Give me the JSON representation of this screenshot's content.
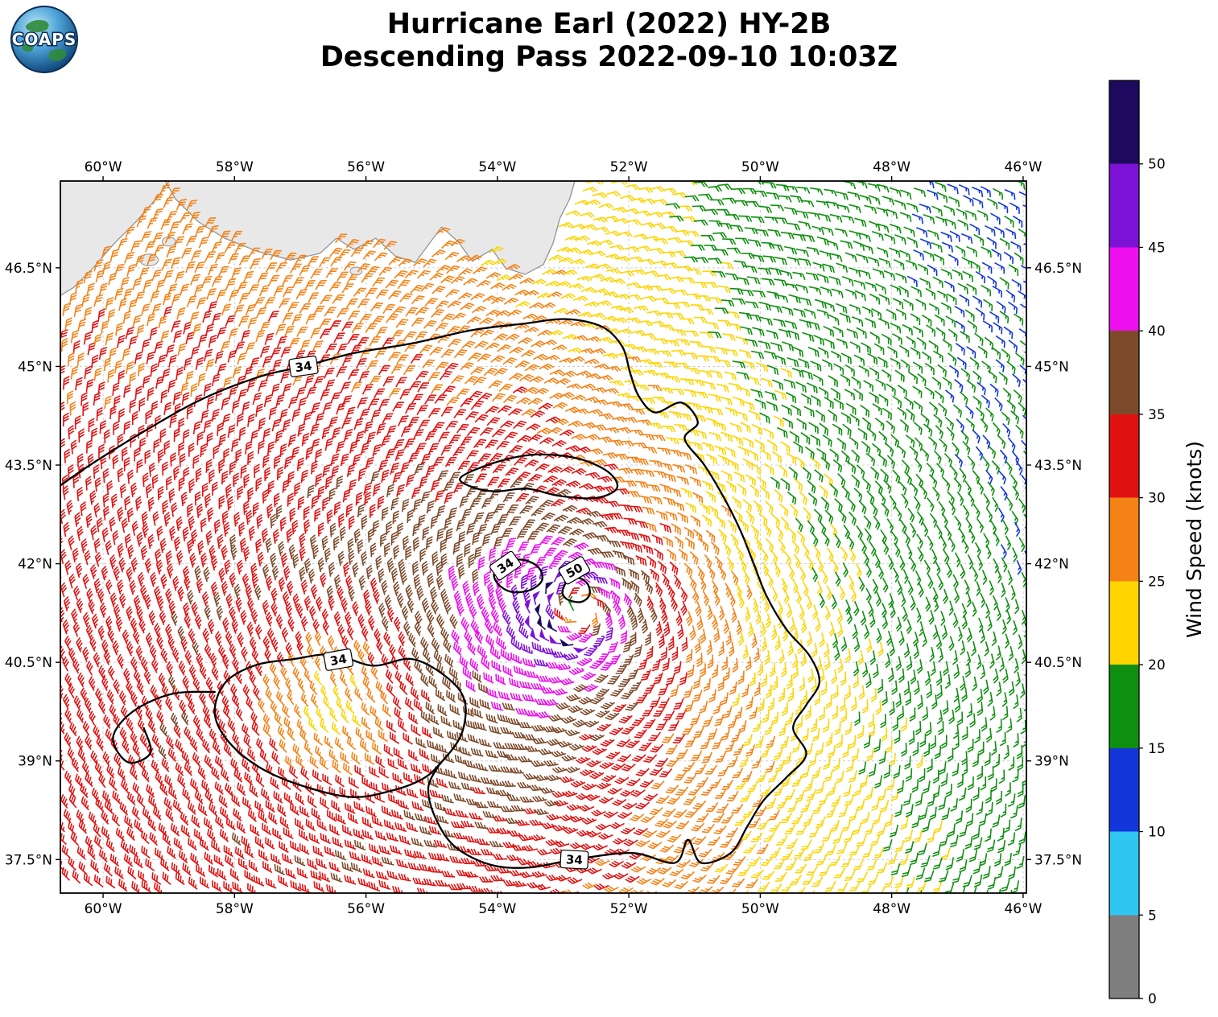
{
  "title": {
    "line1": "Hurricane Earl (2022) HY-2B",
    "line2": "Descending Pass 2022-09-10 10:03Z"
  },
  "logo": {
    "text": "COAPS"
  },
  "chart_data": {
    "type": "wind_barb_map",
    "storm": "Hurricane Earl (2022)",
    "satellite": "HY-2B",
    "pass": "Descending Pass 2022-09-10 10:03Z",
    "axes": {
      "lon_range_deg_w": [
        60.65,
        45.95
      ],
      "lat_range_deg_n": [
        36.99,
        47.82
      ],
      "grid_style": "dashed",
      "lon_ticks": [
        {
          "deg_w": 60,
          "label": "60°W"
        },
        {
          "deg_w": 58,
          "label": "58°W"
        },
        {
          "deg_w": 56,
          "label": "56°W"
        },
        {
          "deg_w": 54,
          "label": "54°W"
        },
        {
          "deg_w": 52,
          "label": "52°W"
        },
        {
          "deg_w": 50,
          "label": "50°W"
        },
        {
          "deg_w": 48,
          "label": "48°W"
        },
        {
          "deg_w": 46,
          "label": "46°W"
        }
      ],
      "lat_ticks": [
        {
          "deg_n": 46.5,
          "label": "46.5°N"
        },
        {
          "deg_n": 45,
          "label": "45°N"
        },
        {
          "deg_n": 43.5,
          "label": "43.5°N"
        },
        {
          "deg_n": 42,
          "label": "42°N"
        },
        {
          "deg_n": 40.5,
          "label": "40.5°N"
        },
        {
          "deg_n": 39,
          "label": "39°N"
        },
        {
          "deg_n": 37.5,
          "label": "37.5°N"
        }
      ]
    },
    "colorbar": {
      "title": "Wind Speed (knots)",
      "tick_values": [
        0,
        5,
        10,
        15,
        20,
        25,
        30,
        35,
        40,
        45,
        50
      ],
      "tick_labels": [
        "0",
        "5",
        "10",
        "15",
        "20",
        "25",
        "30",
        "35",
        "40",
        "45",
        "50"
      ],
      "value_max": 55,
      "segments": [
        {
          "from": 0,
          "to": 5,
          "color": "#7f7f7f"
        },
        {
          "from": 5,
          "to": 10,
          "color": "#2fc6f2"
        },
        {
          "from": 10,
          "to": 15,
          "color": "#1236d9"
        },
        {
          "from": 15,
          "to": 20,
          "color": "#0f8f0f"
        },
        {
          "from": 20,
          "to": 25,
          "color": "#ffd400"
        },
        {
          "from": 25,
          "to": 30,
          "color": "#f58216"
        },
        {
          "from": 30,
          "to": 35,
          "color": "#e11212"
        },
        {
          "from": 35,
          "to": 40,
          "color": "#7d4a2b"
        },
        {
          "from": 40,
          "to": 45,
          "color": "#ed0fed"
        },
        {
          "from": 45,
          "to": 50,
          "color": "#7c12d6"
        },
        {
          "from": 50,
          "to": 55,
          "color": "#1d0a5f"
        }
      ]
    },
    "wind_field": {
      "units": "knots",
      "center": {
        "lon_w": 52.75,
        "lat_n": 41.3
      },
      "rotation": "counterclockwise",
      "inflow_deg": 20,
      "max_wind_kt": 49,
      "radius_max_wind_deg": 0.5,
      "decay_exponent": 0.28,
      "asymmetry": {
        "bias": 0.05,
        "amplitude": 0.45,
        "max_toward_deg_math": 200,
        "growth_scale_deg": 3.2
      },
      "weak_patch": {
        "lon_w": 56.4,
        "lat_n": 39.8,
        "depth": 0.35,
        "sigma_deg": 0.9
      },
      "barb_spacing_deg": 0.185,
      "swath_tilt_deg": -8
    },
    "contours": {
      "levels_kt": [
        34,
        50
      ],
      "line_color": "#000000",
      "labels": [
        {
          "text": "34",
          "lon_w": 56.95,
          "lat_n": 45.0,
          "rot": -8
        },
        {
          "text": "34",
          "lon_w": 53.88,
          "lat_n": 41.97,
          "rot": -35
        },
        {
          "text": "50",
          "lon_w": 52.83,
          "lat_n": 41.9,
          "rot": -30
        },
        {
          "text": "34",
          "lon_w": 56.42,
          "lat_n": 40.54,
          "rot": -10
        },
        {
          "text": "34",
          "lon_w": 52.83,
          "lat_n": 37.5,
          "rot": 3
        }
      ],
      "paths": [
        {
          "level": 34,
          "closed": false,
          "points": [
            [
              60.78,
              43.1
            ],
            [
              60.2,
              43.5
            ],
            [
              59.4,
              44.0
            ],
            [
              58.5,
              44.5
            ],
            [
              57.6,
              44.85
            ],
            [
              56.95,
              45.0
            ],
            [
              56.2,
              45.2
            ],
            [
              55.3,
              45.35
            ],
            [
              54.4,
              45.55
            ],
            [
              53.6,
              45.65
            ],
            [
              52.95,
              45.72
            ],
            [
              52.4,
              45.6
            ],
            [
              52.1,
              45.3
            ],
            [
              51.98,
              44.9
            ],
            [
              51.85,
              44.55
            ],
            [
              51.6,
              44.3
            ],
            [
              51.2,
              44.45
            ],
            [
              50.95,
              44.15
            ],
            [
              51.15,
              43.9
            ],
            [
              50.85,
              43.5
            ],
            [
              50.55,
              43.0
            ],
            [
              50.3,
              42.5
            ],
            [
              50.1,
              42.0
            ],
            [
              49.9,
              41.5
            ],
            [
              49.6,
              41.0
            ],
            [
              49.25,
              40.6
            ],
            [
              49.1,
              40.2
            ],
            [
              49.3,
              39.85
            ],
            [
              49.5,
              39.5
            ],
            [
              49.3,
              39.1
            ],
            [
              49.6,
              38.75
            ],
            [
              49.95,
              38.4
            ],
            [
              50.2,
              38.0
            ],
            [
              50.45,
              37.6
            ],
            [
              50.9,
              37.45
            ],
            [
              51.1,
              37.8
            ],
            [
              51.3,
              37.45
            ],
            [
              51.95,
              37.6
            ],
            [
              52.83,
              37.5
            ],
            [
              53.5,
              37.38
            ],
            [
              54.1,
              37.42
            ],
            [
              54.65,
              37.7
            ],
            [
              54.95,
              38.15
            ],
            [
              55.05,
              38.6
            ],
            [
              54.88,
              38.95
            ]
          ]
        },
        {
          "level": 34,
          "closed": true,
          "points": [
            [
              54.88,
              38.95
            ],
            [
              54.55,
              39.4
            ],
            [
              54.5,
              39.92
            ],
            [
              54.78,
              40.28
            ],
            [
              55.3,
              40.55
            ],
            [
              55.9,
              40.45
            ],
            [
              56.5,
              40.62
            ],
            [
              57.1,
              40.55
            ],
            [
              57.7,
              40.45
            ],
            [
              58.15,
              40.18
            ],
            [
              58.3,
              39.72
            ],
            [
              58.08,
              39.28
            ],
            [
              57.58,
              38.88
            ],
            [
              56.9,
              38.6
            ],
            [
              56.2,
              38.45
            ],
            [
              55.6,
              38.55
            ],
            [
              55.15,
              38.72
            ]
          ]
        },
        {
          "level": 34,
          "closed": false,
          "points": [
            [
              58.3,
              40.05
            ],
            [
              58.95,
              40.02
            ],
            [
              59.55,
              39.75
            ],
            [
              59.85,
              39.35
            ],
            [
              59.62,
              38.98
            ],
            [
              59.28,
              39.12
            ],
            [
              59.38,
              39.5
            ]
          ]
        },
        {
          "level": 34,
          "closed": true,
          "points": [
            [
              54.05,
              41.85
            ],
            [
              53.9,
              42.02
            ],
            [
              53.62,
              42.06
            ],
            [
              53.38,
              41.95
            ],
            [
              53.32,
              41.75
            ],
            [
              53.5,
              41.6
            ],
            [
              53.78,
              41.57
            ],
            [
              53.98,
              41.68
            ]
          ]
        },
        {
          "level": 50,
          "closed": true,
          "points": [
            [
              53.0,
              41.62
            ],
            [
              52.92,
              41.75
            ],
            [
              52.75,
              41.78
            ],
            [
              52.62,
              41.68
            ],
            [
              52.6,
              41.52
            ],
            [
              52.72,
              41.42
            ],
            [
              52.9,
              41.44
            ],
            [
              53.0,
              41.52
            ]
          ]
        },
        {
          "level": 34,
          "closed": true,
          "points": [
            [
              54.55,
              43.32
            ],
            [
              54.0,
              43.55
            ],
            [
              53.4,
              43.66
            ],
            [
              52.78,
              43.6
            ],
            [
              52.32,
              43.4
            ],
            [
              52.18,
              43.15
            ],
            [
              52.5,
              43.0
            ],
            [
              53.05,
              43.03
            ],
            [
              53.55,
              43.14
            ],
            [
              54.05,
              43.1
            ],
            [
              54.42,
              43.18
            ]
          ]
        }
      ]
    },
    "land": {
      "fill": "#e8e8e8",
      "coast": "#8c8c8c",
      "polygons": [
        [
          [
            60.78,
            46.0
          ],
          [
            60.45,
            46.2
          ],
          [
            60.15,
            46.5
          ],
          [
            59.85,
            46.85
          ],
          [
            59.5,
            47.2
          ],
          [
            59.15,
            47.6
          ],
          [
            58.95,
            47.9
          ],
          [
            60.78,
            47.9
          ]
        ],
        [
          [
            59.1,
            47.9
          ],
          [
            58.9,
            47.55
          ],
          [
            58.55,
            47.2
          ],
          [
            58.15,
            46.95
          ],
          [
            57.65,
            46.75
          ],
          [
            57.15,
            46.62
          ],
          [
            56.7,
            46.72
          ],
          [
            56.45,
            46.95
          ],
          [
            56.18,
            46.78
          ],
          [
            55.85,
            46.95
          ],
          [
            55.55,
            46.68
          ],
          [
            55.25,
            46.58
          ],
          [
            55.05,
            46.85
          ],
          [
            54.85,
            47.12
          ],
          [
            54.6,
            46.9
          ],
          [
            54.38,
            46.6
          ],
          [
            54.08,
            46.78
          ],
          [
            53.88,
            46.5
          ],
          [
            53.58,
            46.4
          ],
          [
            53.3,
            46.55
          ],
          [
            53.15,
            46.88
          ],
          [
            53.05,
            47.25
          ],
          [
            52.9,
            47.55
          ],
          [
            52.8,
            47.9
          ]
        ]
      ],
      "islets": [
        {
          "lon_w": 59.3,
          "lat_n": 46.62,
          "rx": 0.14,
          "ry": 0.09
        },
        {
          "lon_w": 59.0,
          "lat_n": 46.9,
          "rx": 0.1,
          "ry": 0.07
        },
        {
          "lon_w": 56.15,
          "lat_n": 46.45,
          "rx": 0.09,
          "ry": 0.06
        }
      ]
    }
  }
}
